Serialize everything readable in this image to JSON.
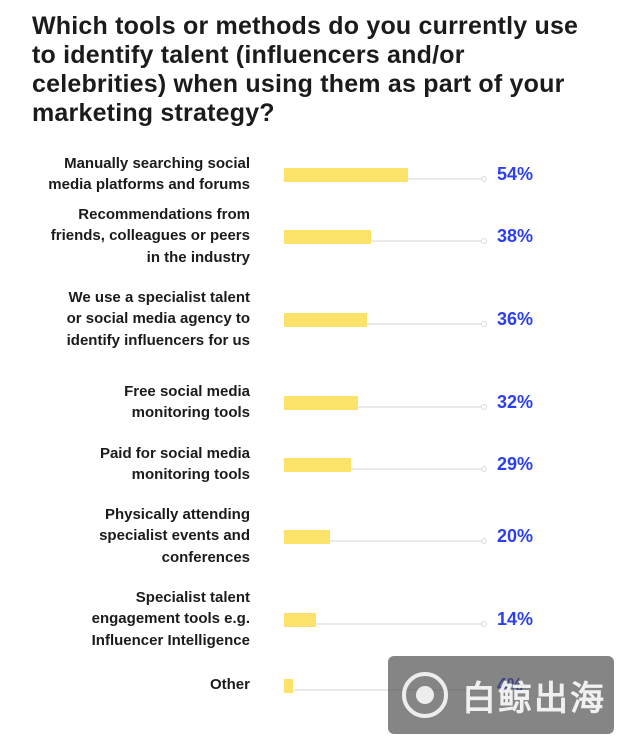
{
  "chart_data": {
    "type": "bar",
    "orientation": "horizontal",
    "title": "Which tools or methods do you currently use to identify talent (influencers and/or celebrities) when using them as part of your marketing strategy?",
    "categories": [
      [
        "Manually searching social",
        "media platforms and forums"
      ],
      [
        "Recommendations from",
        "friends, colleagues or peers",
        "in the industry"
      ],
      [
        "We use a specialist talent",
        "or social media agency to",
        "identify influencers for us"
      ],
      [
        "Free social media",
        "monitoring tools"
      ],
      [
        "Paid for social media",
        "monitoring tools"
      ],
      [
        "Physically attending",
        "specialist events and",
        "conferences"
      ],
      [
        "Specialist talent",
        "engagement tools e.g.",
        "Influencer Intelligence"
      ],
      [
        "Other"
      ]
    ],
    "values": [
      54,
      38,
      36,
      32,
      29,
      20,
      14,
      4
    ],
    "value_labels": [
      "54%",
      "38%",
      "36%",
      "32%",
      "29%",
      "20%",
      "14%",
      "4%"
    ],
    "xlim": [
      0,
      100
    ],
    "colors": {
      "bar": "#fbe36b",
      "value": "#2b3ff0",
      "track": "#e9eaee"
    }
  },
  "watermark": {
    "text": "白鲸出海"
  }
}
